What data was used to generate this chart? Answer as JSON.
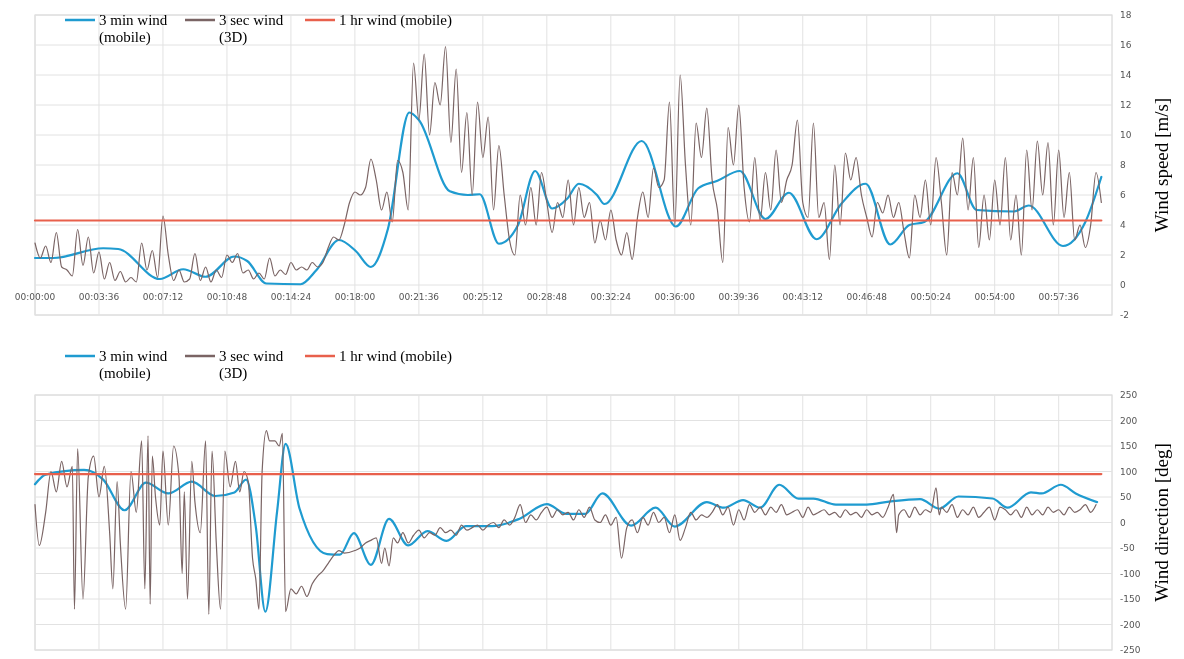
{
  "chart_data": [
    {
      "type": "line",
      "ylabel": "Wind speed [m/s]",
      "xlim": [
        0,
        1.01
      ],
      "ylim": [
        -2,
        18
      ],
      "grid": true,
      "legend": "top left",
      "xticks": [
        {
          "value": 0,
          "label": "00:00:00"
        },
        {
          "value": 0.06,
          "label": "00:03:36"
        },
        {
          "value": 0.12,
          "label": "00:07:12"
        },
        {
          "value": 0.18,
          "label": "00:10:48"
        },
        {
          "value": 0.24,
          "label": "00:14:24"
        },
        {
          "value": 0.3,
          "label": "00:18:00"
        },
        {
          "value": 0.36,
          "label": "00:21:36"
        },
        {
          "value": 0.42,
          "label": "00:25:12"
        },
        {
          "value": 0.48,
          "label": "00:28:48"
        },
        {
          "value": 0.54,
          "label": "00:32:24"
        },
        {
          "value": 0.6,
          "label": "00:36:00"
        },
        {
          "value": 0.66,
          "label": "00:39:36"
        },
        {
          "value": 0.72,
          "label": "00:43:12"
        },
        {
          "value": 0.78,
          "label": "00:46:48"
        },
        {
          "value": 0.84,
          "label": "00:50:24"
        },
        {
          "value": 0.9,
          "label": "00:54:00"
        },
        {
          "value": 0.96,
          "label": "00:57:36"
        }
      ],
      "yticks": [
        -2,
        0,
        2,
        4,
        6,
        8,
        10,
        12,
        14,
        16,
        18
      ],
      "series": [
        {
          "name": "3 min wind (mobile)",
          "color": "#1f9bd0",
          "x": [
            0,
            0.017,
            0.064,
            0.078,
            0.117,
            0.139,
            0.16,
            0.187,
            0.199,
            0.217,
            0.249,
            0.264,
            0.285,
            0.301,
            0.315,
            0.331,
            0.351,
            0.36,
            0.389,
            0.406,
            0.417,
            0.435,
            0.453,
            0.469,
            0.485,
            0.499,
            0.51,
            0.527,
            0.534,
            0.569,
            0.601,
            0.622,
            0.64,
            0.661,
            0.685,
            0.707,
            0.733,
            0.756,
            0.779,
            0.802,
            0.82,
            0.834,
            0.865,
            0.883,
            0.918,
            0.932,
            0.964,
            0.985,
            1.0
          ],
          "values": [
            1.8,
            1.8,
            2.45,
            2.4,
            0.4,
            1.05,
            0.55,
            1.9,
            1.6,
            0.1,
            0.05,
            1.0,
            3.0,
            2.25,
            1.2,
            3.75,
            11.5,
            11,
            6.25,
            6,
            6.05,
            2.75,
            4,
            7.6,
            5.1,
            5.75,
            6.75,
            6,
            5.4,
            9.6,
            3.9,
            6.45,
            6.95,
            7.6,
            4.4,
            6.15,
            3.05,
            5.4,
            6.75,
            2.7,
            4.0,
            4.2,
            7.45,
            5.0,
            4.9,
            5.3,
            2.6,
            4.2,
            7.2
          ]
        },
        {
          "name": "3 sec wind (3D)",
          "color": "#7a6464",
          "x": [
            0,
            0.005,
            0.01,
            0.015,
            0.02,
            0.025,
            0.03,
            0.035,
            0.04,
            0.045,
            0.05,
            0.055,
            0.06,
            0.065,
            0.07,
            0.075,
            0.08,
            0.085,
            0.09,
            0.095,
            0.1,
            0.105,
            0.11,
            0.115,
            0.12,
            0.125,
            0.13,
            0.135,
            0.14,
            0.145,
            0.15,
            0.155,
            0.16,
            0.165,
            0.17,
            0.175,
            0.18,
            0.185,
            0.19,
            0.195,
            0.2,
            0.205,
            0.21,
            0.215,
            0.22,
            0.225,
            0.23,
            0.235,
            0.24,
            0.245,
            0.25,
            0.255,
            0.26,
            0.265,
            0.27,
            0.275,
            0.28,
            0.285,
            0.29,
            0.295,
            0.3,
            0.305,
            0.31,
            0.315,
            0.32,
            0.325,
            0.33,
            0.335,
            0.34,
            0.345,
            0.35,
            0.355,
            0.36,
            0.365,
            0.37,
            0.375,
            0.38,
            0.385,
            0.39,
            0.395,
            0.4,
            0.405,
            0.41,
            0.415,
            0.42,
            0.425,
            0.43,
            0.435,
            0.44,
            0.445,
            0.45,
            0.455,
            0.46,
            0.465,
            0.47,
            0.475,
            0.48,
            0.485,
            0.49,
            0.495,
            0.5,
            0.505,
            0.51,
            0.515,
            0.52,
            0.525,
            0.53,
            0.535,
            0.54,
            0.545,
            0.55,
            0.555,
            0.56,
            0.565,
            0.57,
            0.575,
            0.58,
            0.585,
            0.59,
            0.595,
            0.6,
            0.605,
            0.61,
            0.615,
            0.62,
            0.625,
            0.63,
            0.635,
            0.64,
            0.645,
            0.65,
            0.655,
            0.66,
            0.665,
            0.67,
            0.675,
            0.68,
            0.685,
            0.69,
            0.695,
            0.7,
            0.705,
            0.71,
            0.715,
            0.72,
            0.725,
            0.73,
            0.735,
            0.74,
            0.745,
            0.75,
            0.755,
            0.76,
            0.765,
            0.77,
            0.775,
            0.78,
            0.785,
            0.79,
            0.795,
            0.8,
            0.805,
            0.81,
            0.815,
            0.82,
            0.825,
            0.83,
            0.835,
            0.84,
            0.845,
            0.85,
            0.855,
            0.86,
            0.865,
            0.87,
            0.875,
            0.88,
            0.885,
            0.89,
            0.895,
            0.9,
            0.905,
            0.91,
            0.915,
            0.92,
            0.925,
            0.93,
            0.935,
            0.94,
            0.945,
            0.95,
            0.955,
            0.96,
            0.965,
            0.97,
            0.975,
            0.98,
            0.985,
            0.99,
            0.995,
            1.0
          ],
          "values": [
            2.8,
            1.8,
            2.6,
            1.5,
            3.5,
            1.2,
            1.0,
            0.6,
            3.7,
            1.3,
            3.2,
            0.8,
            2.2,
            0.4,
            1.5,
            0.3,
            0.9,
            0.2,
            0.5,
            0.2,
            2.8,
            1.0,
            2.3,
            0.5,
            4.6,
            2.0,
            0.3,
            1.0,
            0.2,
            0.4,
            2.1,
            0.3,
            1.2,
            0.2,
            1.0,
            0.5,
            2.0,
            1.5,
            2.1,
            0.8,
            1.0,
            0.4,
            0.8,
            0.4,
            1.8,
            0.6,
            1.0,
            0.7,
            1.5,
            1.0,
            1.2,
            1.0,
            1.5,
            1.2,
            1.5,
            2.5,
            3.2,
            3.0,
            4.0,
            5.5,
            6.2,
            6.0,
            6.5,
            8.4,
            7.0,
            5.0,
            6.2,
            4.2,
            8.3,
            7.5,
            5.0,
            14.8,
            11.0,
            15.4,
            10.0,
            13.5,
            12.0,
            15.9,
            9.5,
            14.4,
            7.5,
            11.5,
            6.0,
            12.2,
            8.5,
            11.2,
            5.0,
            9.3,
            6.0,
            3.0,
            2.0,
            6.0,
            4.0,
            6.5,
            4.0,
            7.5,
            5.5,
            3.5,
            5.5,
            4.5,
            7.0,
            4.0,
            6.5,
            4.5,
            5.5,
            2.8,
            4.3,
            3.0,
            5.0,
            3.0,
            2.0,
            3.5,
            1.7,
            4.5,
            6.2,
            4.5,
            7.8,
            6.5,
            7.0,
            12.2,
            4.0,
            14.0,
            8.0,
            4.0,
            10.8,
            8.5,
            11.8,
            7.0,
            5.0,
            1.5,
            10.5,
            8.0,
            12.0,
            6.5,
            4.2,
            8.5,
            4.3,
            7.5,
            5.0,
            9.0,
            5.5,
            7.0,
            8.0,
            11.0,
            5.5,
            4.5,
            10.8,
            4.5,
            5.5,
            1.7,
            8.0,
            4.0,
            8.8,
            7.0,
            8.5,
            6.0,
            4.5,
            3.2,
            5.5,
            4.8,
            6.0,
            4.5,
            5.5,
            3.5,
            1.8,
            6.0,
            4.5,
            7.0,
            4.0,
            8.5,
            5.5,
            2.0,
            7.5,
            6.0,
            9.8,
            5.0,
            8.5,
            2.5,
            6.0,
            3.0,
            7.0,
            4.0,
            8.5,
            3.0,
            6.0,
            2.0,
            9.0,
            5.0,
            9.6,
            6.0,
            9.5,
            4.0,
            9.0,
            4.5,
            7.5,
            3.0,
            4.0,
            2.5,
            4.0,
            7.5,
            5.5
          ]
        },
        {
          "name": "1 hr wind (mobile)",
          "color": "#e8604c",
          "x": [
            0,
            1.0
          ],
          "values": [
            4.3,
            4.3
          ]
        }
      ]
    },
    {
      "type": "line",
      "ylabel": "Wind direction [deg]",
      "xlim": [
        0,
        1.01
      ],
      "ylim": [
        -250,
        250
      ],
      "grid": true,
      "legend": "top left",
      "tick_labels": "y",
      "xticks": [
        {
          "value": 0,
          "label": null
        },
        {
          "value": 0.06,
          "label": null
        },
        {
          "value": 0.12,
          "label": null
        },
        {
          "value": 0.18,
          "label": null
        },
        {
          "value": 0.24,
          "label": null
        },
        {
          "value": 0.3,
          "label": null
        },
        {
          "value": 0.36,
          "label": null
        },
        {
          "value": 0.42,
          "label": null
        },
        {
          "value": 0.48,
          "label": null
        },
        {
          "value": 0.54,
          "label": null
        },
        {
          "value": 0.6,
          "label": null
        },
        {
          "value": 0.66,
          "label": null
        },
        {
          "value": 0.72,
          "label": null
        },
        {
          "value": 0.78,
          "label": null
        },
        {
          "value": 0.84,
          "label": null
        },
        {
          "value": 0.9,
          "label": null
        },
        {
          "value": 0.96,
          "label": null
        }
      ],
      "yticks": [
        -250,
        -200,
        -150,
        -100,
        -50,
        0,
        50,
        100,
        150,
        200,
        250
      ],
      "series": [
        {
          "name": "3 min wind (mobile)",
          "color": "#1f9bd0",
          "x": [
            0,
            0.01,
            0.046,
            0.064,
            0.084,
            0.104,
            0.125,
            0.147,
            0.169,
            0.187,
            0.198,
            0.207,
            0.216,
            0.227,
            0.235,
            0.248,
            0.274,
            0.286,
            0.299,
            0.315,
            0.332,
            0.35,
            0.368,
            0.386,
            0.404,
            0.429,
            0.454,
            0.48,
            0.498,
            0.516,
            0.532,
            0.559,
            0.582,
            0.6,
            0.63,
            0.646,
            0.664,
            0.68,
            0.698,
            0.716,
            0.73,
            0.751,
            0.78,
            0.801,
            0.83,
            0.848,
            0.866,
            0.898,
            0.912,
            0.934,
            0.944,
            0.962,
            0.976,
            0.996
          ],
          "values": [
            75,
            94,
            103,
            84,
            24,
            78,
            57,
            80,
            52,
            59,
            84,
            -7,
            -175,
            21,
            154,
            28,
            -62,
            -63,
            -21,
            -83,
            7,
            -45,
            -17,
            -36,
            -7,
            -7,
            7,
            36,
            17,
            17,
            57,
            -6,
            29,
            -8,
            40,
            29,
            44,
            29,
            74,
            47,
            47,
            35,
            35,
            41,
            46,
            27,
            51,
            47,
            29,
            59,
            57,
            74,
            57,
            40
          ]
        },
        {
          "name": "3 sec wind (3D)",
          "color": "#7a6464",
          "x": [
            0,
            0.004,
            0.01,
            0.015,
            0.02,
            0.025,
            0.03,
            0.035,
            0.037,
            0.04,
            0.045,
            0.05,
            0.055,
            0.06,
            0.065,
            0.07,
            0.073,
            0.077,
            0.08,
            0.085,
            0.09,
            0.095,
            0.1,
            0.103,
            0.106,
            0.108,
            0.11,
            0.113,
            0.117,
            0.12,
            0.125,
            0.13,
            0.135,
            0.138,
            0.14,
            0.143,
            0.147,
            0.15,
            0.155,
            0.16,
            0.163,
            0.166,
            0.17,
            0.174,
            0.178,
            0.183,
            0.188,
            0.192,
            0.196,
            0.2,
            0.204,
            0.207,
            0.21,
            0.213,
            0.217,
            0.22,
            0.225,
            0.229,
            0.232,
            0.235,
            0.24,
            0.245,
            0.25,
            0.255,
            0.26,
            0.265,
            0.27,
            0.275,
            0.28,
            0.285,
            0.29,
            0.3,
            0.305,
            0.31,
            0.315,
            0.32,
            0.325,
            0.328,
            0.332,
            0.336,
            0.34,
            0.345,
            0.35,
            0.355,
            0.36,
            0.365,
            0.37,
            0.375,
            0.38,
            0.385,
            0.39,
            0.395,
            0.4,
            0.405,
            0.41,
            0.415,
            0.42,
            0.425,
            0.43,
            0.435,
            0.44,
            0.445,
            0.45,
            0.455,
            0.46,
            0.465,
            0.47,
            0.475,
            0.48,
            0.485,
            0.49,
            0.495,
            0.5,
            0.505,
            0.51,
            0.515,
            0.52,
            0.525,
            0.53,
            0.535,
            0.54,
            0.545,
            0.55,
            0.555,
            0.56,
            0.565,
            0.57,
            0.575,
            0.58,
            0.585,
            0.59,
            0.595,
            0.6,
            0.605,
            0.61,
            0.615,
            0.62,
            0.625,
            0.63,
            0.635,
            0.64,
            0.645,
            0.65,
            0.655,
            0.66,
            0.665,
            0.67,
            0.675,
            0.68,
            0.685,
            0.69,
            0.695,
            0.7,
            0.705,
            0.71,
            0.715,
            0.72,
            0.725,
            0.73,
            0.735,
            0.74,
            0.745,
            0.75,
            0.755,
            0.76,
            0.765,
            0.77,
            0.775,
            0.78,
            0.785,
            0.79,
            0.795,
            0.8,
            0.805,
            0.808,
            0.81,
            0.815,
            0.82,
            0.825,
            0.83,
            0.835,
            0.84,
            0.845,
            0.848,
            0.85,
            0.855,
            0.86,
            0.865,
            0.87,
            0.875,
            0.88,
            0.885,
            0.89,
            0.895,
            0.9,
            0.905,
            0.91,
            0.915,
            0.92,
            0.925,
            0.93,
            0.935,
            0.94,
            0.945,
            0.95,
            0.955,
            0.96,
            0.965,
            0.97,
            0.975,
            0.98,
            0.985,
            0.99,
            0.995
          ],
          "values": [
            35,
            -45,
            20,
            100,
            60,
            120,
            70,
            110,
            -170,
            145,
            -150,
            90,
            130,
            50,
            110,
            -20,
            -130,
            80,
            -40,
            -170,
            100,
            20,
            160,
            -130,
            170,
            -160,
            130,
            50,
            -5,
            140,
            -5,
            150,
            90,
            -100,
            60,
            -150,
            120,
            40,
            -20,
            160,
            -180,
            140,
            -40,
            -170,
            140,
            70,
            120,
            60,
            100,
            80,
            -70,
            -110,
            -170,
            100,
            180,
            160,
            160,
            150,
            175,
            -175,
            -130,
            -140,
            -125,
            -145,
            -120,
            -105,
            -95,
            -80,
            -65,
            -55,
            -60,
            -55,
            -50,
            -40,
            -35,
            -30,
            -80,
            -50,
            -85,
            -30,
            -40,
            -20,
            -40,
            -25,
            -15,
            -30,
            -20,
            -25,
            -10,
            -20,
            -15,
            -25,
            -5,
            -15,
            -10,
            -5,
            -15,
            -5,
            0,
            -10,
            5,
            -5,
            10,
            35,
            0,
            15,
            5,
            20,
            30,
            10,
            25,
            15,
            20,
            5,
            25,
            10,
            30,
            5,
            0,
            15,
            -5,
            10,
            -70,
            -10,
            5,
            -20,
            10,
            -5,
            20,
            0,
            10,
            -20,
            15,
            -35,
            -10,
            20,
            5,
            15,
            10,
            20,
            35,
            15,
            30,
            -5,
            25,
            5,
            35,
            20,
            30,
            15,
            30,
            20,
            35,
            15,
            20,
            25,
            10,
            30,
            15,
            20,
            25,
            15,
            20,
            10,
            25,
            15,
            20,
            10,
            25,
            15,
            20,
            10,
            30,
            55,
            -20,
            15,
            25,
            10,
            30,
            15,
            25,
            20,
            68,
            15,
            30,
            20,
            35,
            10,
            25,
            15,
            30,
            10,
            20,
            30,
            5,
            30,
            25,
            15,
            25,
            10,
            30,
            15,
            25,
            15,
            30,
            20,
            25,
            15,
            30,
            20,
            25,
            35,
            20,
            35
          ]
        },
        {
          "name": "1 hr wind (mobile)",
          "color": "#e8604c",
          "x": [
            0,
            1.0
          ],
          "values": [
            95,
            95
          ]
        }
      ]
    }
  ]
}
